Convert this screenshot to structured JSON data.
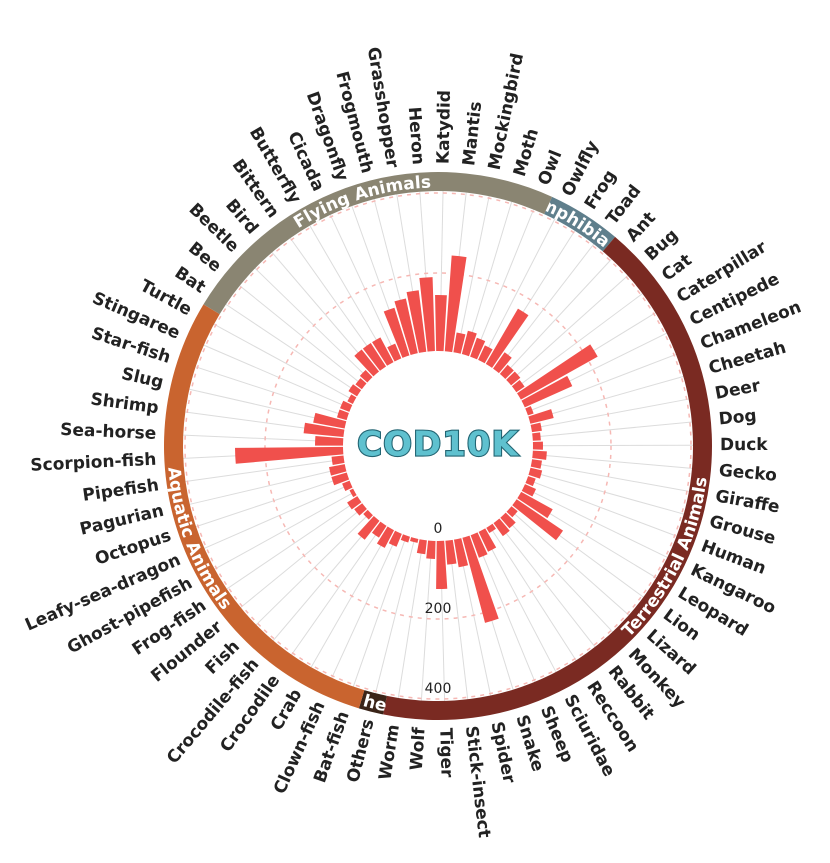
{
  "chart_data": {
    "type": "bar",
    "subtype": "circular-bar",
    "center_title": "COD10K",
    "radial_ticks": [
      "0",
      "200",
      "400"
    ],
    "radial_tick_values": [
      0,
      200,
      400
    ],
    "bar_color": "#f0504c",
    "rmax": 400,
    "categories": [
      "Owl",
      "Owlfly",
      "Frog",
      "Toad",
      "Ant",
      "Bug",
      "Cat",
      "Caterpillar",
      "Centipede",
      "Chameleon",
      "Cheetah",
      "Deer",
      "Dog",
      "Duck",
      "Gecko",
      "Giraffe",
      "Grouse",
      "Human",
      "Kangaroo",
      "Leopard",
      "Lion",
      "Lizard",
      "Monkey",
      "Rabbit",
      "Reccoon",
      "Sciuridae",
      "Sheep",
      "Snake",
      "Spider",
      "Stick-insect",
      "Tiger",
      "Wolf",
      "Worm",
      "Others",
      "Bat-fish",
      "Clown-fish",
      "Crab",
      "Crocodile",
      "Crocodile-fish",
      "Fish",
      "Flounder",
      "Frog-fish",
      "Ghost-pipefish",
      "Leafy-sea-dragon",
      "Octopus",
      "Pagurian",
      "Pipefish",
      "Scorpion-fish",
      "Sea-horse",
      "Shrimp",
      "Slug",
      "Star-fish",
      "Stingaree",
      "Turtle",
      "Bat",
      "Bee",
      "Beetle",
      "Bird",
      "Bittern",
      "Butterfly",
      "Cicada",
      "Dragonfly",
      "Frogmouth",
      "Grasshopper",
      "Heron",
      "Katydid",
      "Mantis",
      "Mockingbird",
      "Moth"
    ],
    "values": [
      50,
      40,
      160,
      50,
      30,
      30,
      25,
      220,
      130,
      15,
      60,
      25,
      20,
      25,
      35,
      25,
      30,
      20,
      30,
      90,
      140,
      20,
      35,
      40,
      15,
      55,
      60,
      220,
      70,
      60,
      120,
      45,
      35,
      10,
      15,
      35,
      50,
      35,
      60,
      15,
      25,
      30,
      10,
      20,
      40,
      40,
      30,
      270,
      70,
      100,
      80,
      25,
      25,
      15,
      25,
      20,
      25,
      70,
      70,
      70,
      40,
      125,
      140,
      155,
      185,
      140,
      240,
      50,
      60
    ],
    "groups": [
      {
        "name": "Amphibians",
        "color": "#5f7f8c",
        "start": 1,
        "end": 4
      },
      {
        "name": "Terrestrial Animals",
        "color": "#7a2a22",
        "start": 4,
        "end": 33
      },
      {
        "name": "Others",
        "color": "#3a2418",
        "start": 33,
        "end": 34
      },
      {
        "name": "Aquatic Animals",
        "color": "#c9642f",
        "start": 34,
        "end": 54
      },
      {
        "name": "Flying Animals",
        "color": "#8a8572",
        "start": 54,
        "end": 70
      }
    ],
    "xlabel": "",
    "ylabel": "",
    "grid": true,
    "legend": "none"
  }
}
